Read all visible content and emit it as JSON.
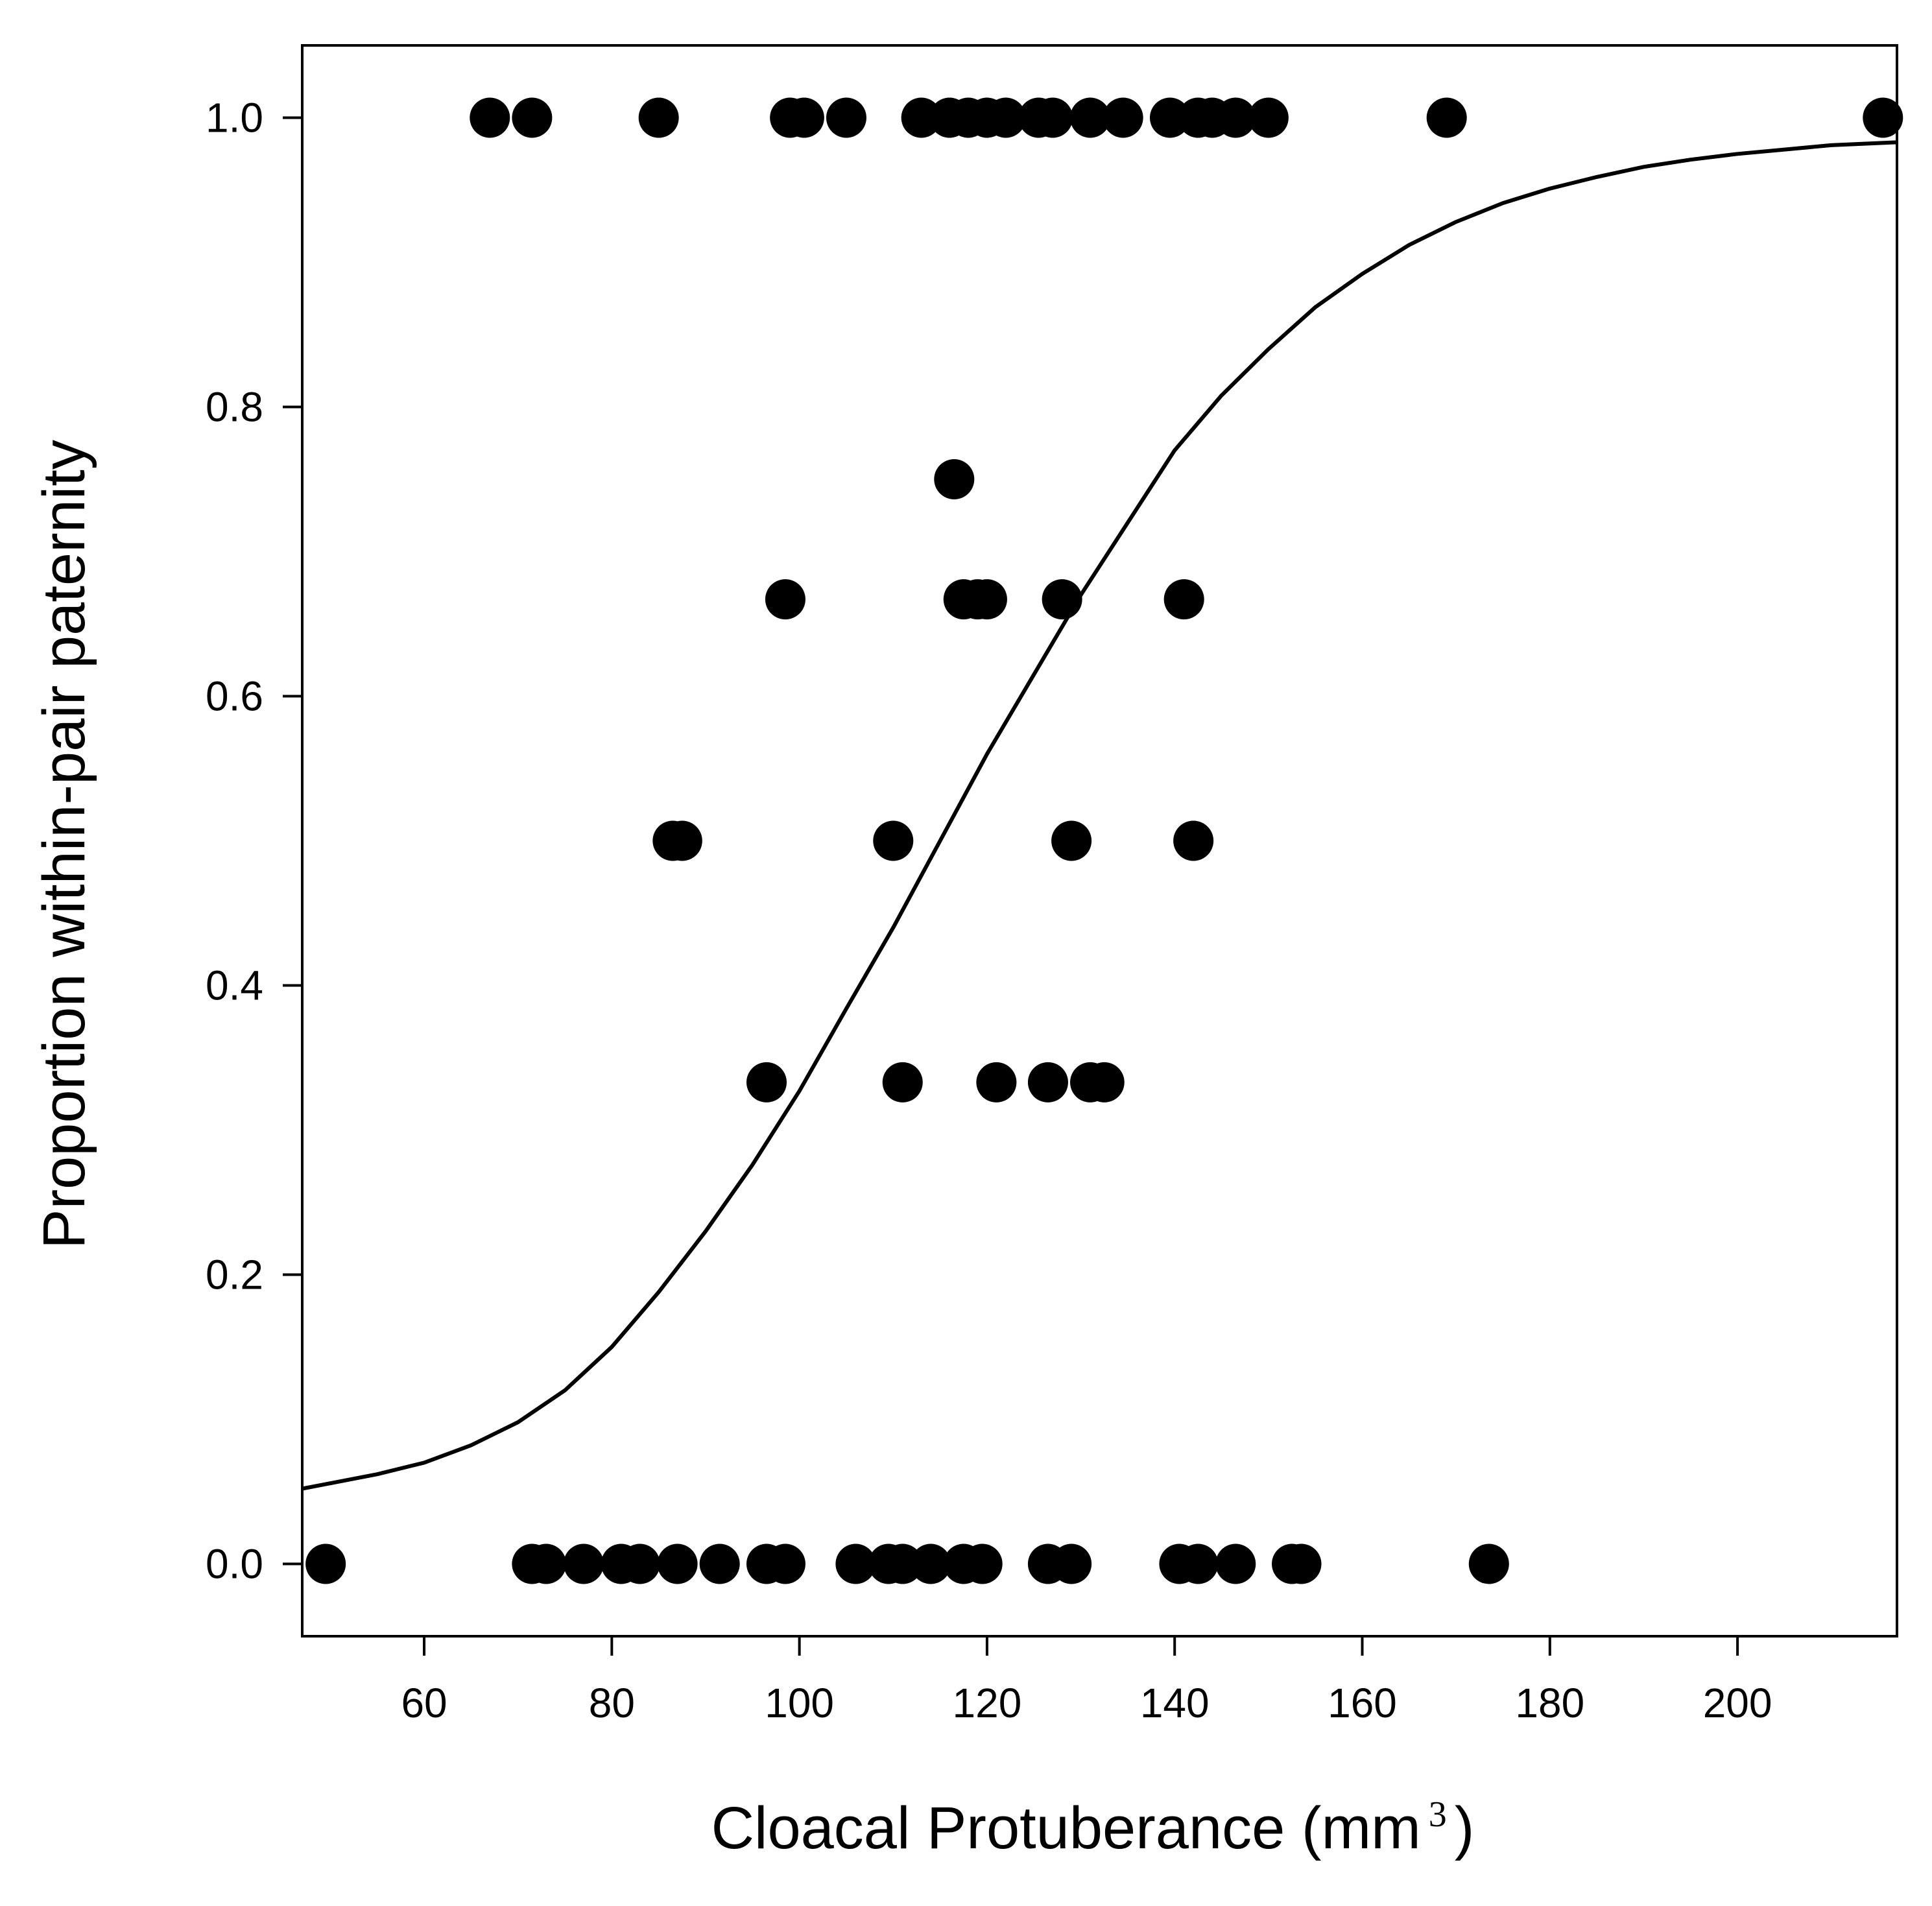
{
  "chart_data": {
    "type": "scatter",
    "xlabel": "Cloacal Protuberance (mm",
    "xlabel_superscript": "3",
    "xlabel_close": ")",
    "ylabel": "Proportion within-pair paternity",
    "xlim": [
      47,
      217
    ],
    "ylim": [
      -0.05,
      1.05
    ],
    "xticks": [
      60,
      80,
      100,
      120,
      140,
      160,
      180,
      200
    ],
    "yticks": [
      0.0,
      0.2,
      0.4,
      0.6,
      0.8,
      1.0
    ],
    "xtick_labels": [
      "60",
      "80",
      "100",
      "120",
      "140",
      "160",
      "180",
      "200"
    ],
    "ytick_labels": [
      "0.0",
      "0.2",
      "0.4",
      "0.6",
      "0.8",
      "1.0"
    ],
    "grid": false,
    "legend": "none",
    "point_color": "#000000",
    "points": [
      {
        "x": 67,
        "y": 1.0
      },
      {
        "x": 71.5,
        "y": 1.0
      },
      {
        "x": 85,
        "y": 1.0
      },
      {
        "x": 99,
        "y": 1.0
      },
      {
        "x": 100.5,
        "y": 1.0
      },
      {
        "x": 105,
        "y": 1.0
      },
      {
        "x": 113,
        "y": 1.0
      },
      {
        "x": 116,
        "y": 1.0
      },
      {
        "x": 118,
        "y": 1.0
      },
      {
        "x": 120,
        "y": 1.0
      },
      {
        "x": 122,
        "y": 1.0
      },
      {
        "x": 125.5,
        "y": 1.0
      },
      {
        "x": 127,
        "y": 1.0
      },
      {
        "x": 131,
        "y": 1.0
      },
      {
        "x": 134.5,
        "y": 1.0
      },
      {
        "x": 139.5,
        "y": 1.0
      },
      {
        "x": 142.5,
        "y": 1.0
      },
      {
        "x": 144,
        "y": 1.0
      },
      {
        "x": 146.5,
        "y": 1.0
      },
      {
        "x": 150,
        "y": 1.0
      },
      {
        "x": 169,
        "y": 1.0
      },
      {
        "x": 215.5,
        "y": 1.0
      },
      {
        "x": 116.5,
        "y": 0.75
      },
      {
        "x": 98.5,
        "y": 0.667
      },
      {
        "x": 117.5,
        "y": 0.667
      },
      {
        "x": 119,
        "y": 0.667
      },
      {
        "x": 120,
        "y": 0.667
      },
      {
        "x": 128,
        "y": 0.667
      },
      {
        "x": 141,
        "y": 0.667
      },
      {
        "x": 86.5,
        "y": 0.5
      },
      {
        "x": 87.5,
        "y": 0.5
      },
      {
        "x": 110,
        "y": 0.5
      },
      {
        "x": 129,
        "y": 0.5
      },
      {
        "x": 142,
        "y": 0.5
      },
      {
        "x": 96.5,
        "y": 0.333
      },
      {
        "x": 111,
        "y": 0.333
      },
      {
        "x": 121,
        "y": 0.333
      },
      {
        "x": 126.5,
        "y": 0.333
      },
      {
        "x": 131,
        "y": 0.333
      },
      {
        "x": 132.5,
        "y": 0.333
      },
      {
        "x": 49.5,
        "y": 0.0
      },
      {
        "x": 71.5,
        "y": 0.0
      },
      {
        "x": 73,
        "y": 0.0
      },
      {
        "x": 77,
        "y": 0.0
      },
      {
        "x": 81,
        "y": 0.0
      },
      {
        "x": 83,
        "y": 0.0
      },
      {
        "x": 87,
        "y": 0.0
      },
      {
        "x": 91.5,
        "y": 0.0
      },
      {
        "x": 96.5,
        "y": 0.0
      },
      {
        "x": 98.5,
        "y": 0.0
      },
      {
        "x": 106,
        "y": 0.0
      },
      {
        "x": 109.5,
        "y": 0.0
      },
      {
        "x": 111,
        "y": 0.0
      },
      {
        "x": 114,
        "y": 0.0
      },
      {
        "x": 117.5,
        "y": 0.0
      },
      {
        "x": 119.5,
        "y": 0.0
      },
      {
        "x": 126.5,
        "y": 0.0
      },
      {
        "x": 129,
        "y": 0.0
      },
      {
        "x": 140.5,
        "y": 0.0
      },
      {
        "x": 142.5,
        "y": 0.0
      },
      {
        "x": 146.5,
        "y": 0.0
      },
      {
        "x": 152.5,
        "y": 0.0
      },
      {
        "x": 153.5,
        "y": 0.0
      },
      {
        "x": 173.5,
        "y": 0.0
      }
    ],
    "fit_curve": {
      "type": "logistic",
      "x": [
        47,
        55,
        60,
        65,
        70,
        75,
        80,
        85,
        90,
        95,
        100,
        105,
        110,
        115,
        120,
        125,
        130,
        135,
        140,
        145,
        150,
        155,
        160,
        165,
        170,
        175,
        180,
        185,
        190,
        195,
        200,
        205,
        210,
        217
      ],
      "y": [
        0.052,
        0.062,
        0.07,
        0.082,
        0.098,
        0.12,
        0.15,
        0.188,
        0.23,
        0.276,
        0.327,
        0.384,
        0.44,
        0.5,
        0.56,
        0.615,
        0.67,
        0.72,
        0.77,
        0.808,
        0.84,
        0.869,
        0.892,
        0.912,
        0.928,
        0.941,
        0.951,
        0.959,
        0.966,
        0.971,
        0.975,
        0.978,
        0.981,
        0.983
      ]
    }
  }
}
